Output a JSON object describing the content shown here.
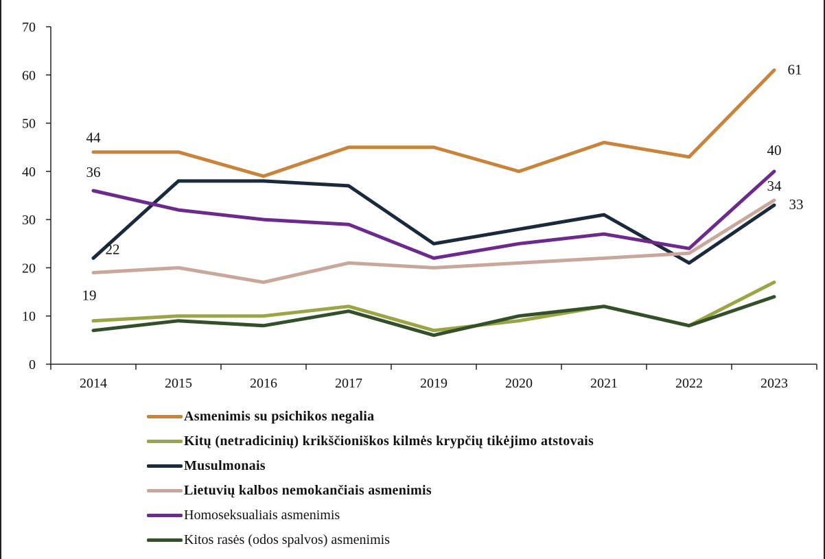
{
  "chart_data": {
    "type": "line",
    "categories": [
      "2014",
      "2015",
      "2016",
      "2017",
      "2019",
      "2020",
      "2021",
      "2022",
      "2023"
    ],
    "ylim": [
      0,
      70
    ],
    "yticks": [
      0,
      10,
      20,
      30,
      40,
      50,
      60,
      70
    ],
    "grid": false,
    "legend_position": "bottom",
    "series": [
      {
        "name": "Asmenimis su psichikos negalia",
        "bold": true,
        "color": "#C8843A",
        "values": [
          44,
          44,
          39,
          45,
          45,
          40,
          46,
          43,
          61
        ]
      },
      {
        "name": "Kitų (netradicinių) krikščioniškos kilmės krypčių tikėjimo atstovais",
        "bold": true,
        "color": "#9AA545",
        "values": [
          9,
          10,
          10,
          12,
          7,
          9,
          12,
          8,
          17
        ]
      },
      {
        "name": "Musulmonais",
        "bold": true,
        "color": "#1B2A3A",
        "values": [
          22,
          38,
          38,
          37,
          25,
          28,
          31,
          21,
          33
        ]
      },
      {
        "name": "Lietuvių kalbos nemokančiais asmenimis",
        "bold": true,
        "color": "#C8A89C",
        "values": [
          19,
          20,
          17,
          21,
          20,
          21,
          22,
          23,
          34
        ]
      },
      {
        "name": "Homoseksualiais asmenimis",
        "bold": false,
        "color": "#6B2A8C",
        "values": [
          36,
          32,
          30,
          29,
          22,
          25,
          27,
          24,
          40
        ]
      },
      {
        "name": "Kitos rasės (odos spalvos) asmenimis",
        "bold": false,
        "color": "#33502A",
        "values": [
          7,
          9,
          8,
          11,
          6,
          10,
          12,
          8,
          14
        ]
      }
    ],
    "data_labels": [
      {
        "text": "44",
        "series": 0,
        "index": 0
      },
      {
        "text": "61",
        "series": 0,
        "index": 8
      },
      {
        "text": "36",
        "series": 4,
        "index": 0
      },
      {
        "text": "40",
        "series": 4,
        "index": 8
      },
      {
        "text": "22",
        "series": 2,
        "index": 0
      },
      {
        "text": "19",
        "series": 3,
        "index": 0
      },
      {
        "text": "34",
        "series": 3,
        "index": 8
      },
      {
        "text": "33",
        "series": 2,
        "index": 8
      }
    ]
  }
}
